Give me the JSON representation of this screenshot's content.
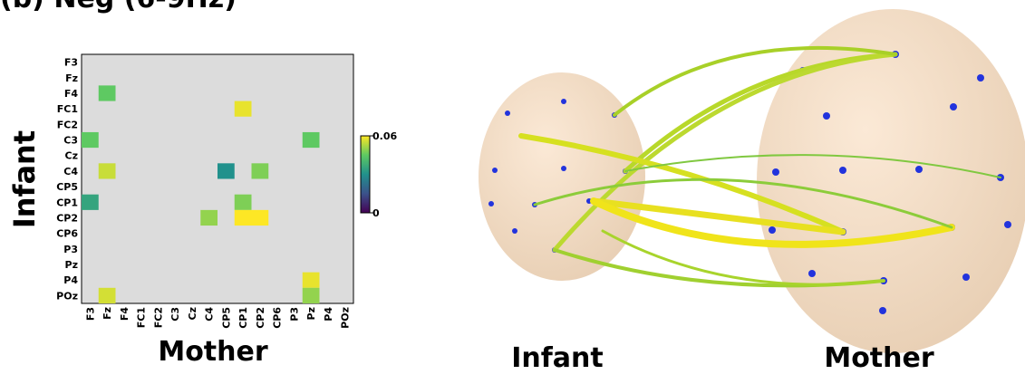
{
  "chart_data": {
    "type": "heatmap",
    "title": "(b) Neg (6-9Hz)",
    "ylabel": "Infant",
    "xlabel": "Mother",
    "rows": [
      "F3",
      "Fz",
      "F4",
      "FC1",
      "FC2",
      "C3",
      "Cz",
      "C4",
      "CP5",
      "CP1",
      "CP2",
      "CP6",
      "P3",
      "Pz",
      "P4",
      "POz"
    ],
    "columns": [
      "F3",
      "Fz",
      "F4",
      "FC1",
      "FC2",
      "C3",
      "Cz",
      "C4",
      "CP5",
      "CP1",
      "CP2",
      "CP6",
      "P3",
      "Pz",
      "P4",
      "POz"
    ],
    "values": [
      [
        null,
        null,
        null,
        null,
        null,
        null,
        null,
        null,
        null,
        null,
        null,
        null,
        null,
        null,
        null,
        null
      ],
      [
        null,
        null,
        null,
        null,
        null,
        null,
        null,
        null,
        null,
        null,
        null,
        null,
        null,
        null,
        null,
        null
      ],
      [
        null,
        0.045,
        null,
        null,
        null,
        null,
        null,
        null,
        null,
        null,
        null,
        null,
        null,
        null,
        null,
        null
      ],
      [
        null,
        null,
        null,
        null,
        null,
        null,
        null,
        null,
        null,
        0.058,
        null,
        null,
        null,
        null,
        null,
        null
      ],
      [
        null,
        null,
        null,
        null,
        null,
        null,
        null,
        null,
        null,
        null,
        null,
        null,
        null,
        null,
        null,
        null
      ],
      [
        0.045,
        null,
        null,
        null,
        null,
        null,
        null,
        null,
        null,
        null,
        null,
        null,
        null,
        0.045,
        null,
        null
      ],
      [
        null,
        null,
        null,
        null,
        null,
        null,
        null,
        null,
        null,
        null,
        null,
        null,
        null,
        null,
        null,
        null
      ],
      [
        null,
        0.055,
        null,
        null,
        null,
        null,
        null,
        null,
        0.03,
        null,
        0.048,
        null,
        null,
        null,
        null,
        null
      ],
      [
        null,
        null,
        null,
        null,
        null,
        null,
        null,
        null,
        null,
        null,
        null,
        null,
        null,
        null,
        null,
        null
      ],
      [
        0.035,
        null,
        null,
        null,
        null,
        null,
        null,
        null,
        null,
        0.048,
        null,
        null,
        null,
        null,
        null,
        null
      ],
      [
        null,
        null,
        null,
        null,
        null,
        null,
        null,
        0.05,
        null,
        0.06,
        0.06,
        null,
        null,
        null,
        null,
        null
      ],
      [
        null,
        null,
        null,
        null,
        null,
        null,
        null,
        null,
        null,
        null,
        null,
        null,
        null,
        null,
        null,
        null
      ],
      [
        null,
        null,
        null,
        null,
        null,
        null,
        null,
        null,
        null,
        null,
        null,
        null,
        null,
        null,
        null,
        null
      ],
      [
        null,
        null,
        null,
        null,
        null,
        null,
        null,
        null,
        null,
        null,
        null,
        null,
        null,
        null,
        null,
        null
      ],
      [
        null,
        null,
        null,
        null,
        null,
        null,
        null,
        null,
        null,
        null,
        null,
        null,
        null,
        0.058,
        null,
        null
      ],
      [
        null,
        0.056,
        null,
        null,
        null,
        null,
        null,
        null,
        null,
        null,
        null,
        null,
        null,
        0.05,
        null,
        null
      ]
    ],
    "zlim": [
      0,
      0.06
    ],
    "zticks": [
      0,
      0.06
    ],
    "colormap": "viridis",
    "illustration_labels": [
      "Infant",
      "Mother"
    ]
  }
}
